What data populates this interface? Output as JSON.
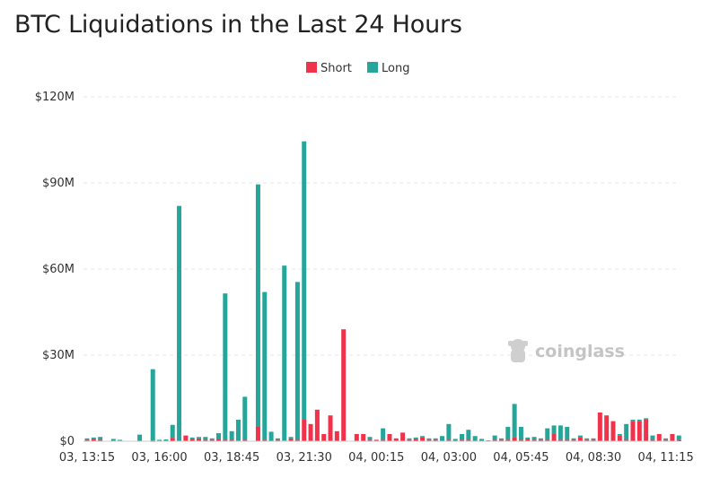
{
  "chart_data": {
    "type": "bar",
    "title": "BTC Liquidations in the Last 24 Hours",
    "stacked": true,
    "legend": {
      "position": "top-center"
    },
    "grid": {
      "horizontal": true,
      "vertical": false
    },
    "ylim": [
      0,
      120
    ],
    "y_ticks": [
      "$0",
      "$30M",
      "$60M",
      "$90M",
      "$120M"
    ],
    "x_tick_labels": [
      "03, 13:15",
      "03, 16:00",
      "03, 18:45",
      "03, 21:30",
      "04, 00:15",
      "04, 03:00",
      "04, 05:45",
      "04, 08:30",
      "04, 11:15"
    ],
    "watermark": "coinglass",
    "series": [
      {
        "name": "Short",
        "color": "#f0334b",
        "values": [
          0.5,
          0.8,
          0.5,
          0,
          0.3,
          0.2,
          0,
          0,
          0.3,
          0,
          0.1,
          0,
          0.3,
          1.2,
          0,
          2.0,
          0.8,
          1.0,
          0.5,
          0.5,
          0.8,
          0.5,
          0.5,
          0,
          0.5,
          0,
          5.0,
          0.5,
          0.3,
          0.5,
          0.2,
          1.0,
          0.5,
          7.5,
          6.0,
          11.0,
          2.5,
          9.0,
          3.5,
          39.0,
          0,
          2.5,
          2.5,
          0.5,
          0.5,
          0.5,
          2.5,
          1.0,
          3.0,
          0.5,
          0.8,
          1.5,
          0.5,
          0.5,
          0.3,
          0.5,
          0.3,
          0.5,
          0.5,
          0.3,
          0.3,
          0.3,
          0.5,
          0.5,
          0.5,
          1.5,
          0.5,
          0.8,
          0.5,
          0.5,
          0.5,
          2.5,
          0.5,
          0.5,
          0.5,
          1.5,
          0.5,
          0.5,
          10.0,
          9.0,
          7.0,
          2.0,
          0.5,
          7.0,
          7.0,
          7.5,
          0.5,
          2.5,
          0.5,
          2.5,
          0.5
        ]
      },
      {
        "name": "Long",
        "color": "#26a69a",
        "values": [
          0.5,
          0.5,
          1.0,
          0,
          0.5,
          0.3,
          0,
          0,
          2.0,
          0,
          25.0,
          0.5,
          0.3,
          4.5,
          82.0,
          0,
          0.5,
          0.5,
          1.0,
          0.5,
          2.0,
          51.0,
          3.0,
          7.5,
          15.0,
          0,
          84.5,
          51.5,
          3.0,
          0.5,
          61.0,
          0.5,
          55.0,
          97.0,
          0,
          0,
          0,
          0,
          0,
          0,
          0,
          0,
          0,
          1.0,
          0,
          4.0,
          0,
          0,
          0,
          0.5,
          0.5,
          0.3,
          0.5,
          0.5,
          1.5,
          5.5,
          0.5,
          2.0,
          3.5,
          1.5,
          0.5,
          0,
          1.5,
          0.5,
          4.5,
          11.5,
          4.5,
          0.5,
          1.0,
          0.5,
          4.0,
          3.0,
          5.0,
          4.5,
          0.5,
          0.5,
          0.5,
          0.5,
          0,
          0,
          0,
          0.5,
          5.5,
          0.5,
          0.5,
          0.5,
          1.5,
          0,
          0.5,
          0,
          1.5
        ]
      }
    ]
  }
}
